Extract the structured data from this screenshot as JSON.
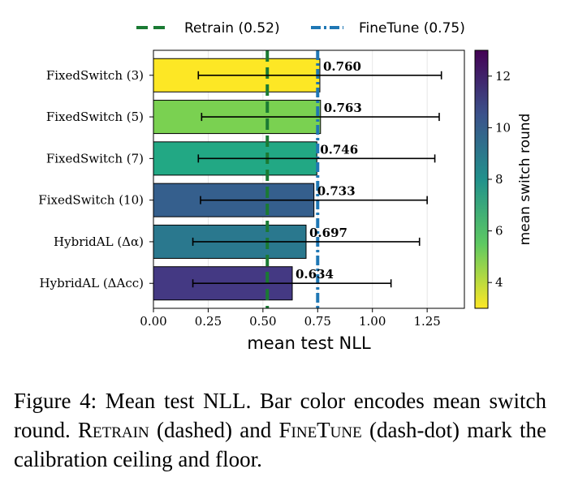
{
  "chart_data": {
    "type": "bar",
    "orientation": "horizontal",
    "categories": [
      "FixedSwitch (3)",
      "FixedSwitch (5)",
      "FixedSwitch (7)",
      "FixedSwitch (10)",
      "HybridAL (Δα)",
      "HybridAL (ΔAcc)"
    ],
    "values": [
      0.76,
      0.763,
      0.746,
      0.733,
      0.697,
      0.634
    ],
    "value_labels": [
      "0.760",
      "0.763",
      "0.746",
      "0.733",
      "0.697",
      "0.634"
    ],
    "error_low": [
      0.205,
      0.22,
      0.205,
      0.215,
      0.18,
      0.18
    ],
    "error_high": [
      1.315,
      1.305,
      1.285,
      1.25,
      1.215,
      1.085
    ],
    "switch_round": [
      3,
      5,
      7,
      10,
      9,
      12
    ],
    "bar_colors": [
      "#fde725",
      "#7ad151",
      "#22a884",
      "#355f8d",
      "#2a788e",
      "#443983"
    ],
    "xlabel": "mean test NLL",
    "xlim": [
      0,
      1.42
    ],
    "xticks": [
      "0.00",
      "0.25",
      "0.50",
      "0.75",
      "1.00",
      "1.25"
    ],
    "xtick_values": [
      0,
      0.25,
      0.5,
      0.75,
      1.0,
      1.25
    ],
    "grid": "vertical",
    "reference_lines": [
      {
        "name": "Retrain (0.52)",
        "value": 0.52,
        "style": "dashed",
        "color": "#1a7a33"
      },
      {
        "name": "FineTune (0.75)",
        "value": 0.75,
        "style": "dashdot",
        "color": "#1f77b4"
      }
    ],
    "legend_position": "top",
    "colorbar": {
      "label": "mean switch round",
      "range": [
        3,
        13
      ],
      "ticks": [
        "4",
        "6",
        "8",
        "10",
        "12"
      ],
      "tick_values": [
        4,
        6,
        8,
        10,
        12
      ],
      "colormap": "viridis_r"
    }
  },
  "caption": {
    "part1": "Figure 4:  Mean test NLL. Bar color encodes mean switch round. ",
    "retrain": "Retrain",
    "part2": " (dashed) and ",
    "finetune": "FineTune",
    "part3": " (dash-dot) mark the calibration ceiling and floor."
  }
}
